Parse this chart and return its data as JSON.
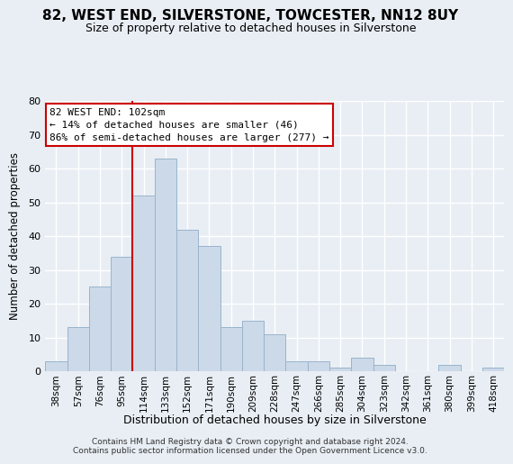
{
  "title": "82, WEST END, SILVERSTONE, TOWCESTER, NN12 8UY",
  "subtitle": "Size of property relative to detached houses in Silverstone",
  "xlabel": "Distribution of detached houses by size in Silverstone",
  "ylabel": "Number of detached properties",
  "bar_color": "#ccd9e8",
  "bar_edge_color": "#9ab4cc",
  "background_color": "#e8eef4",
  "plot_bg_color": "#e8eef4",
  "grid_color": "#ffffff",
  "categories": [
    "38sqm",
    "57sqm",
    "76sqm",
    "95sqm",
    "114sqm",
    "133sqm",
    "152sqm",
    "171sqm",
    "190sqm",
    "209sqm",
    "228sqm",
    "247sqm",
    "266sqm",
    "285sqm",
    "304sqm",
    "323sqm",
    "342sqm",
    "361sqm",
    "380sqm",
    "399sqm",
    "418sqm"
  ],
  "values": [
    3,
    13,
    25,
    34,
    52,
    63,
    42,
    37,
    13,
    15,
    11,
    3,
    3,
    1,
    4,
    2,
    0,
    0,
    2,
    0,
    1
  ],
  "ylim": [
    0,
    80
  ],
  "yticks": [
    0,
    10,
    20,
    30,
    40,
    50,
    60,
    70,
    80
  ],
  "vline_index": 4,
  "vline_color": "#cc0000",
  "annotation_title": "82 WEST END: 102sqm",
  "annotation_line1": "← 14% of detached houses are smaller (46)",
  "annotation_line2": "86% of semi-detached houses are larger (277) →",
  "annotation_box_color": "#ffffff",
  "annotation_box_edge": "#cc0000",
  "footer1": "Contains HM Land Registry data © Crown copyright and database right 2024.",
  "footer2": "Contains public sector information licensed under the Open Government Licence v3.0."
}
